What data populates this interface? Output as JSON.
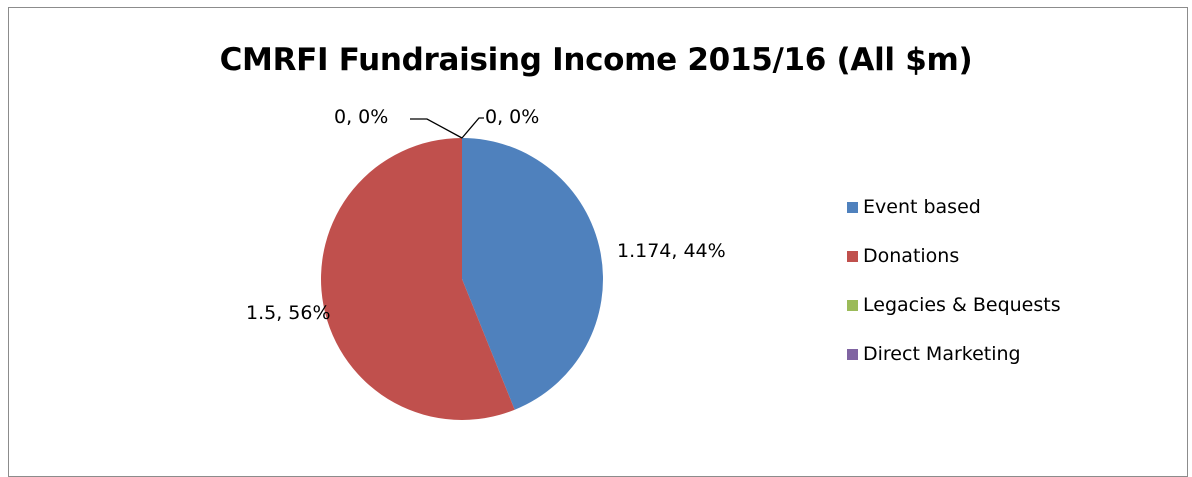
{
  "chart_data": {
    "type": "pie",
    "title": "CMRFI Fundraising Income 2015/16 (All $m)",
    "categories": [
      "Event based",
      "Donations",
      "Legacies & Bequests",
      "Direct Marketing"
    ],
    "values": [
      1.174,
      1.5,
      0,
      0
    ],
    "data_labels": [
      "1.174, 44%",
      "1.5, 56%",
      "0, 0%",
      "0, 0%"
    ],
    "colors": [
      "#4f81bd",
      "#c0504d",
      "#9bbb59",
      "#8064a2"
    ],
    "legend_position": "right"
  }
}
